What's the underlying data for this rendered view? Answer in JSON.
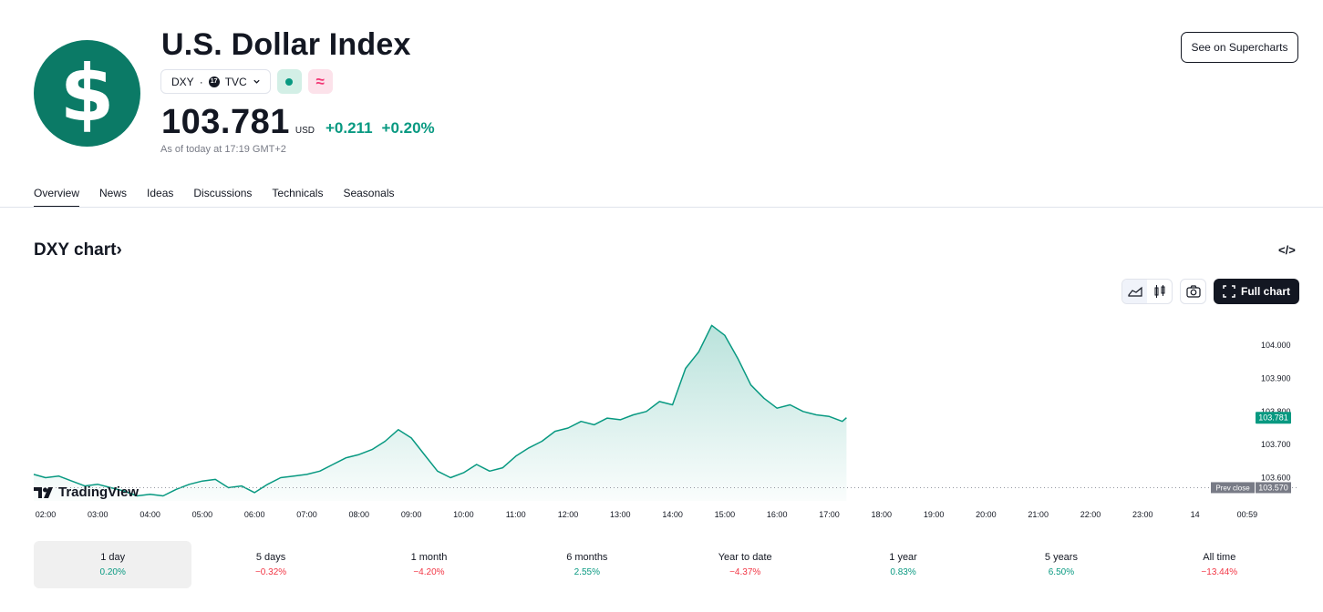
{
  "header": {
    "logo_symbol": "$",
    "title": "U.S. Dollar Index",
    "symbol": "DXY",
    "separator": "·",
    "exchange": "TVC",
    "pink_chip_symbol": "≈",
    "price": "103.781",
    "currency": "USD",
    "change_abs": "+0.211",
    "change_pct": "+0.20%",
    "as_of": "As of today at 17:19 GMT+2",
    "supercharts_label": "See on Supercharts"
  },
  "tabs": [
    "Overview",
    "News",
    "Ideas",
    "Discussions",
    "Technicals",
    "Seasonals"
  ],
  "chart_section": {
    "title": "DXY chart",
    "title_arrow": "›",
    "embed_icon": "</>",
    "full_chart_label": "Full chart",
    "brand": "TradingView"
  },
  "chart_data": {
    "type": "area",
    "x_ticks": [
      "02:00",
      "03:00",
      "04:00",
      "05:00",
      "06:00",
      "07:00",
      "08:00",
      "09:00",
      "10:00",
      "11:00",
      "12:00",
      "13:00",
      "14:00",
      "15:00",
      "16:00",
      "17:00",
      "18:00",
      "19:00",
      "20:00",
      "21:00",
      "22:00",
      "23:00",
      "14",
      "00:59"
    ],
    "y_ticks": [
      "104.000",
      "103.900",
      "103.800",
      "103.700",
      "103.600"
    ],
    "ylim": [
      103.53,
      104.08
    ],
    "last_price_label": "103.781",
    "prev_close_label": "Prev close",
    "prev_close_value": "103.570",
    "series": [
      {
        "x": [
          1.75,
          2.0,
          2.25,
          2.5,
          2.75,
          3.0,
          3.25,
          3.5,
          3.75,
          4.0,
          4.25,
          4.5,
          4.75,
          5.0,
          5.25,
          5.5,
          5.75,
          6.0,
          6.25,
          6.5,
          6.75,
          7.0,
          7.25,
          7.5,
          7.75,
          8.0,
          8.25,
          8.5,
          8.75,
          9.0,
          9.25,
          9.5,
          9.75,
          10.0,
          10.25,
          10.5,
          10.75,
          11.0,
          11.25,
          11.5,
          11.75,
          12.0,
          12.25,
          12.5,
          12.75,
          13.0,
          13.25,
          13.5,
          13.75,
          14.0,
          14.25,
          14.5,
          14.75,
          15.0,
          15.25,
          15.5,
          15.75,
          16.0,
          16.25,
          16.5,
          16.75,
          17.0,
          17.25,
          17.33
        ],
        "values": [
          103.61,
          103.6,
          103.605,
          103.59,
          103.575,
          103.58,
          103.57,
          103.56,
          103.545,
          103.55,
          103.545,
          103.565,
          103.58,
          103.59,
          103.595,
          103.57,
          103.575,
          103.555,
          103.58,
          103.6,
          103.605,
          103.61,
          103.62,
          103.64,
          103.66,
          103.67,
          103.685,
          103.71,
          103.745,
          103.72,
          103.67,
          103.62,
          103.6,
          103.615,
          103.64,
          103.62,
          103.63,
          103.665,
          103.69,
          103.71,
          103.74,
          103.75,
          103.77,
          103.76,
          103.78,
          103.775,
          103.79,
          103.8,
          103.83,
          103.82,
          103.93,
          103.98,
          104.06,
          104.03,
          103.96,
          103.88,
          103.84,
          103.81,
          103.82,
          103.8,
          103.79,
          103.785,
          103.77,
          103.781
        ]
      }
    ],
    "grid": false
  },
  "periods": [
    {
      "label": "1 day",
      "value": "0.20%",
      "sign": "pos"
    },
    {
      "label": "5 days",
      "value": "−0.32%",
      "sign": "neg"
    },
    {
      "label": "1 month",
      "value": "−4.20%",
      "sign": "neg"
    },
    {
      "label": "6 months",
      "value": "2.55%",
      "sign": "pos"
    },
    {
      "label": "Year to date",
      "value": "−4.37%",
      "sign": "neg"
    },
    {
      "label": "1 year",
      "value": "0.83%",
      "sign": "pos"
    },
    {
      "label": "5 years",
      "value": "6.50%",
      "sign": "pos"
    },
    {
      "label": "All time",
      "value": "−13.44%",
      "sign": "neg"
    }
  ],
  "colors": {
    "accent_green": "#089981",
    "negative_red": "#f23645",
    "logo_bg": "#0b7a66",
    "text": "#131722"
  }
}
